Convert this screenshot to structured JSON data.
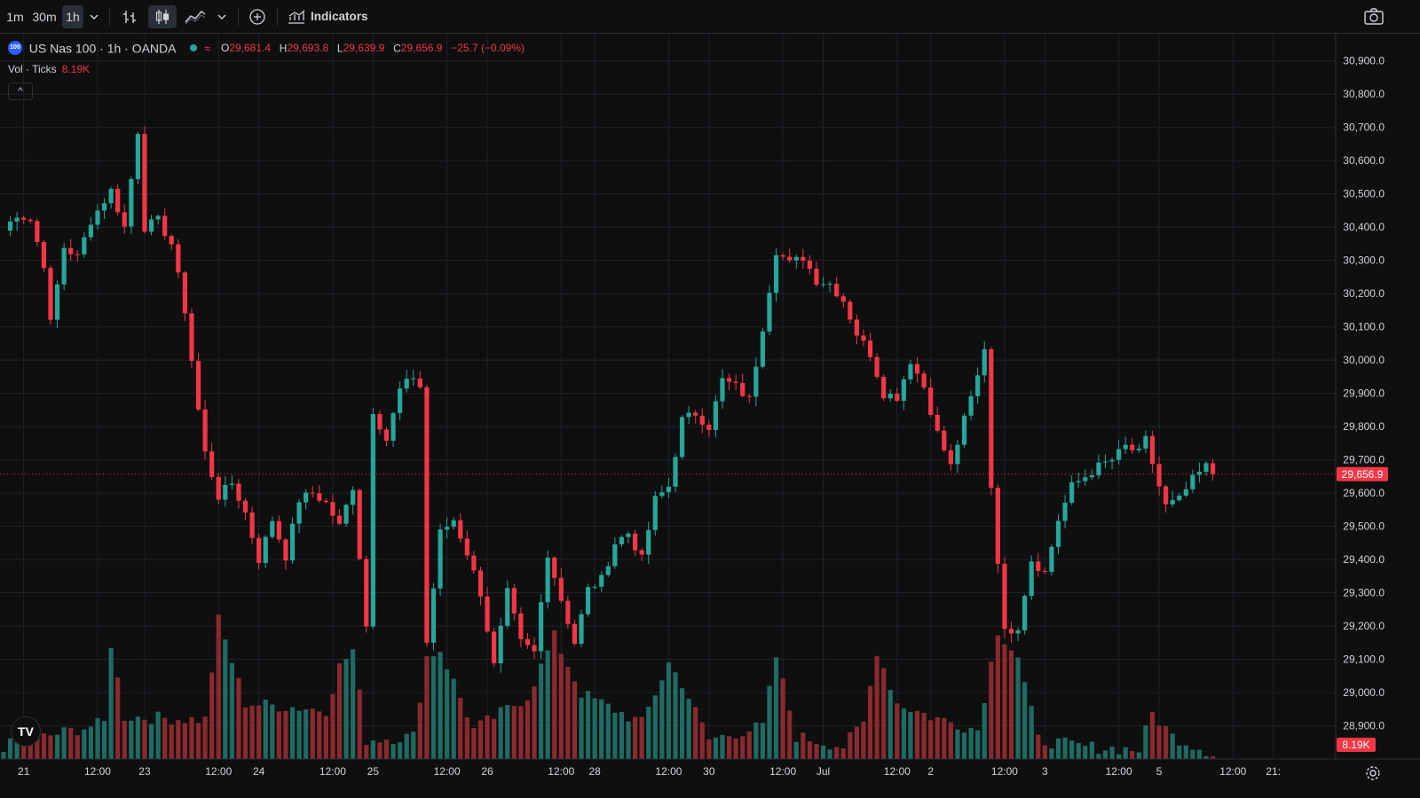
{
  "toolbar": {
    "intervals": [
      "1m",
      "30m",
      "1h"
    ],
    "active_interval": "1h",
    "indicators_label": "Indicators",
    "icons": [
      "chevron-down-icon",
      "bar-chart-icon",
      "candles-icon",
      "area-chart-icon",
      "chevron-down-icon",
      "plus-circle-icon",
      "indicators-icon",
      "camera-icon"
    ]
  },
  "legend": {
    "logo_text": "100",
    "symbol": "US Nas 100 · 1h · OANDA",
    "o_label": "O",
    "o": "29,681.4",
    "h_label": "H",
    "h": "29,693.8",
    "l_label": "L",
    "l": "29,639.9",
    "c_label": "C",
    "c": "29,656.9",
    "change": "−25.7 (−0.09%)",
    "vol_label": "Vol · Ticks",
    "vol_value": "8.19K",
    "collapse": "^"
  },
  "colors": {
    "up": "#26a69a",
    "down": "#f23645",
    "up_vol": "#1f6b63",
    "down_vol": "#8a2a2e",
    "grid": "#1e222d",
    "bg": "#0f0f0f",
    "text": "#d1d4dc"
  },
  "chart_data": {
    "type": "candlestick",
    "title": "US Nas 100 · 1h · OANDA",
    "ylim": [
      28800,
      30950
    ],
    "price_ticks": [
      "30,900.0",
      "30,800.0",
      "30,700.0",
      "30,600.0",
      "30,500.0",
      "30,400.0",
      "30,300.0",
      "30,200.0",
      "30,100.0",
      "30,000.0",
      "29,900.0",
      "29,800.0",
      "29,700.0",
      "29,600.0",
      "29,500.0",
      "29,400.0",
      "29,300.0",
      "29,200.0",
      "29,100.0",
      "29,000.0",
      "28,900.0"
    ],
    "price_tick_values": [
      30900,
      30800,
      30700,
      30600,
      30500,
      30400,
      30300,
      30200,
      30100,
      30000,
      29900,
      29800,
      29700,
      29600,
      29500,
      29400,
      29300,
      29200,
      29100,
      29000,
      28900
    ],
    "last_price_label": "29,656.9",
    "last_price": 29656.9,
    "last_volume_label": "8.19K",
    "time_labels": [
      "21",
      "12:00",
      "23",
      "12:00",
      "24",
      "12:00",
      "25",
      "12:00",
      "26",
      "12:00",
      "28",
      "12:00",
      "30",
      "12:00",
      "Jul",
      "12:00",
      "2",
      "12:00",
      "3",
      "12:00",
      "5",
      "12:00",
      "21:"
    ],
    "time_label_index": [
      3,
      14,
      21,
      32,
      38,
      49,
      55,
      66,
      72,
      83,
      88,
      99,
      105,
      116,
      122,
      133,
      138,
      149,
      155,
      166,
      172,
      183,
      189
    ],
    "bars": 177,
    "close_path": [
      [
        0,
        30390
      ],
      [
        2,
        30440
      ],
      [
        4,
        30420
      ],
      [
        6,
        30290
      ],
      [
        7,
        30110
      ],
      [
        9,
        30340
      ],
      [
        11,
        30310
      ],
      [
        13,
        30420
      ],
      [
        16,
        30510
      ],
      [
        18,
        30400
      ],
      [
        20,
        30690
      ],
      [
        21,
        30400
      ],
      [
        23,
        30420
      ],
      [
        25,
        30350
      ],
      [
        27,
        30150
      ],
      [
        29,
        29850
      ],
      [
        30,
        29720
      ],
      [
        32,
        29590
      ],
      [
        34,
        29630
      ],
      [
        36,
        29540
      ],
      [
        38,
        29400
      ],
      [
        40,
        29520
      ],
      [
        42,
        29410
      ],
      [
        44,
        29580
      ],
      [
        46,
        29600
      ],
      [
        48,
        29570
      ],
      [
        50,
        29500
      ],
      [
        52,
        29620
      ],
      [
        54,
        29200
      ],
      [
        55,
        29850
      ],
      [
        57,
        29760
      ],
      [
        59,
        29910
      ],
      [
        61,
        29950
      ],
      [
        62,
        29920
      ],
      [
        63,
        29150
      ],
      [
        65,
        29480
      ],
      [
        67,
        29520
      ],
      [
        69,
        29420
      ],
      [
        71,
        29300
      ],
      [
        73,
        29080
      ],
      [
        75,
        29300
      ],
      [
        77,
        29150
      ],
      [
        79,
        29120
      ],
      [
        81,
        29420
      ],
      [
        83,
        29280
      ],
      [
        85,
        29150
      ],
      [
        87,
        29310
      ],
      [
        89,
        29340
      ],
      [
        91,
        29450
      ],
      [
        93,
        29480
      ],
      [
        95,
        29400
      ],
      [
        97,
        29580
      ],
      [
        99,
        29620
      ],
      [
        101,
        29820
      ],
      [
        103,
        29840
      ],
      [
        105,
        29800
      ],
      [
        107,
        29940
      ],
      [
        109,
        29920
      ],
      [
        111,
        29880
      ],
      [
        113,
        30100
      ],
      [
        115,
        30330
      ],
      [
        117,
        30290
      ],
      [
        119,
        30310
      ],
      [
        121,
        30240
      ],
      [
        123,
        30230
      ],
      [
        125,
        30180
      ],
      [
        127,
        30080
      ],
      [
        129,
        30020
      ],
      [
        131,
        29900
      ],
      [
        133,
        29890
      ],
      [
        135,
        30000
      ],
      [
        137,
        29920
      ],
      [
        139,
        29780
      ],
      [
        141,
        29680
      ],
      [
        143,
        29820
      ],
      [
        145,
        29950
      ],
      [
        146,
        30040
      ],
      [
        147,
        29620
      ],
      [
        149,
        29180
      ],
      [
        151,
        29200
      ],
      [
        153,
        29400
      ],
      [
        155,
        29360
      ],
      [
        157,
        29520
      ],
      [
        159,
        29620
      ],
      [
        161,
        29650
      ],
      [
        163,
        29680
      ],
      [
        165,
        29700
      ],
      [
        167,
        29740
      ],
      [
        169,
        29720
      ],
      [
        170,
        29760
      ],
      [
        172,
        29620
      ],
      [
        173,
        29560
      ],
      [
        175,
        29580
      ],
      [
        177,
        29640
      ],
      [
        179,
        29680
      ],
      [
        180,
        29656.9
      ]
    ],
    "volume_profile": [
      [
        0,
        28830
      ],
      [
        15,
        28900
      ],
      [
        16,
        29140
      ],
      [
        18,
        28920
      ],
      [
        30,
        28910
      ],
      [
        32,
        29210
      ],
      [
        36,
        28960
      ],
      [
        48,
        28940
      ],
      [
        50,
        29070
      ],
      [
        52,
        29120
      ],
      [
        54,
        28850
      ],
      [
        61,
        28860
      ],
      [
        63,
        29100
      ],
      [
        65,
        29120
      ],
      [
        70,
        28880
      ],
      [
        78,
        28980
      ],
      [
        82,
        29160
      ],
      [
        86,
        28990
      ],
      [
        95,
        28900
      ],
      [
        99,
        29080
      ],
      [
        101,
        29020
      ],
      [
        105,
        28850
      ],
      [
        113,
        28890
      ],
      [
        115,
        29100
      ],
      [
        118,
        28860
      ],
      [
        125,
        28830
      ],
      [
        128,
        28900
      ],
      [
        130,
        29120
      ],
      [
        133,
        28960
      ],
      [
        138,
        28920
      ],
      [
        145,
        28880
      ],
      [
        148,
        29180
      ],
      [
        151,
        29100
      ],
      [
        154,
        28850
      ],
      [
        160,
        28830
      ],
      [
        169,
        28820
      ],
      [
        171,
        28930
      ],
      [
        174,
        28860
      ],
      [
        180,
        28810
      ]
    ]
  }
}
